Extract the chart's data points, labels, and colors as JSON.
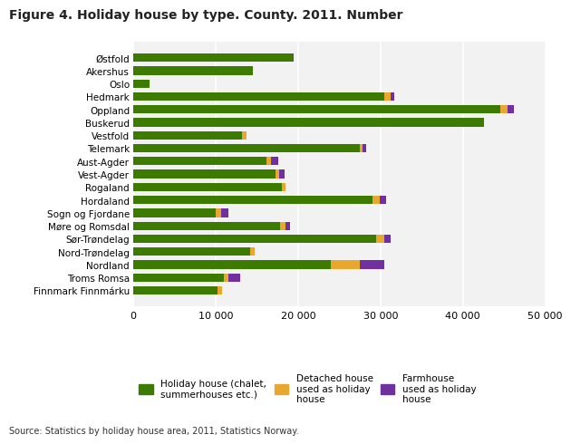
{
  "title": "Figure 4. Holiday house by type. County. 2011. Number",
  "categories": [
    "Østfold",
    "Akershus",
    "Oslo",
    "Hedmark",
    "Oppland",
    "Buskerud",
    "Vestfold",
    "Telemark",
    "Aust-Agder",
    "Vest-Agder",
    "Rogaland",
    "Hordaland",
    "Sogn og Fjordane",
    "Møre og Romsdal",
    "Sør-Trøndelag",
    "Nord-Trøndelag",
    "Nordland",
    "Troms Romsa",
    "Finnmark Finnmárku"
  ],
  "holiday_house": [
    19500,
    14500,
    2000,
    30500,
    44500,
    42500,
    13200,
    27500,
    16200,
    17200,
    18000,
    29000,
    10000,
    17800,
    29500,
    14200,
    24000,
    11000,
    10200
  ],
  "detached_house": [
    0,
    0,
    0,
    700,
    900,
    0,
    500,
    300,
    500,
    500,
    500,
    900,
    600,
    700,
    900,
    500,
    3500,
    500,
    500
  ],
  "farmhouse": [
    0,
    0,
    0,
    500,
    800,
    0,
    0,
    400,
    900,
    600,
    0,
    800,
    900,
    500,
    800,
    0,
    3000,
    1500,
    0
  ],
  "color_holiday": "#3d7a00",
  "color_detached": "#e8a830",
  "color_farmhouse": "#7030a0",
  "xlim": [
    0,
    50000
  ],
  "xticks": [
    0,
    10000,
    20000,
    30000,
    40000,
    50000
  ],
  "xticklabels": [
    "0",
    "10 000",
    "20 000",
    "30 000",
    "40 000",
    "50 000"
  ],
  "legend_labels": [
    "Holiday house (chalet,\nsummerhouses etc.)",
    "Detached house\nused as holiday\nhouse",
    "Farmhouse\nused as holiday\nhouse"
  ],
  "source_text": "Source: Statistics by holiday house area, 2011, Statistics Norway.",
  "background_color": "#f2f2f2",
  "bar_height": 0.65
}
